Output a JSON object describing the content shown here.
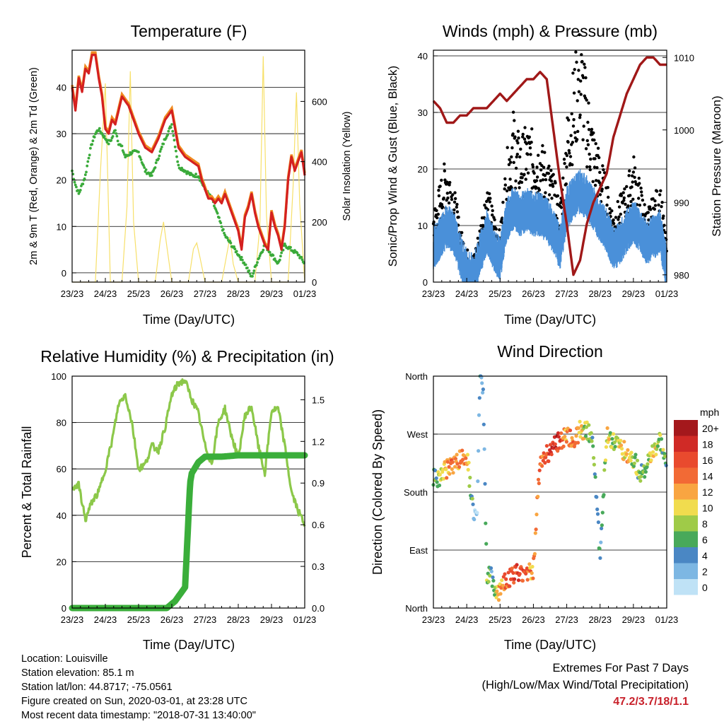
{
  "colors": {
    "temperature": "#d42020",
    "temperature_9m": "#f08a20",
    "dewpoint": "#3aaa3a",
    "solar": "#f7e06a",
    "gust": "#000000",
    "wind": "#4a90d9",
    "pressure": "#a01818",
    "humidity": "#8cc84a",
    "rainfall": "#3aae3a",
    "extremes_text": "#c8202a"
  },
  "panels": {
    "temperature": {
      "title": "Temperature (F)",
      "xlabel": "Time (Day/UTC)",
      "ylabel_left": "2m & 9m T (Red, Orange) & 2m Td (Green)",
      "ylabel_right": "Solar Insolation (Yellow)",
      "x_ticks": [
        "23/23",
        "24/23",
        "25/23",
        "26/23",
        "27/23",
        "28/23",
        "29/23",
        "01/23"
      ],
      "y_ticks": [
        "0",
        "10",
        "20",
        "30",
        "40"
      ],
      "y2_ticks": [
        "0",
        "200",
        "400",
        "600"
      ]
    },
    "winds": {
      "title": "Winds (mph) & Pressure (mb)",
      "xlabel": "Time (Day/UTC)",
      "ylabel_left": "Sonic/Prop Wind & Gust (Blue, Black)",
      "ylabel_right": "Station Pressure (Maroon)",
      "x_ticks": [
        "23/23",
        "24/23",
        "25/23",
        "26/23",
        "27/23",
        "28/23",
        "29/23",
        "01/23"
      ],
      "y_ticks": [
        "0",
        "10",
        "20",
        "30",
        "40"
      ],
      "y2_ticks": [
        "980",
        "990",
        "1000",
        "1010"
      ]
    },
    "humidity": {
      "title": "Relative Humidity (%) & Precipitation (in)",
      "xlabel": "Time (Day/UTC)",
      "ylabel_left": "Percent & Total Rainfall",
      "x_ticks": [
        "23/23",
        "24/23",
        "25/23",
        "26/23",
        "27/23",
        "28/23",
        "29/23",
        "01/23"
      ],
      "y_ticks": [
        "0",
        "20",
        "40",
        "60",
        "80",
        "100"
      ],
      "y2_ticks": [
        "0.0",
        "0.3",
        "0.6",
        "0.9",
        "1.2",
        "1.5"
      ]
    },
    "direction": {
      "title": "Wind Direction",
      "xlabel": "Time (Day/UTC)",
      "ylabel_left": "Direction (Colored By Speed)",
      "x_ticks": [
        "23/23",
        "24/23",
        "25/23",
        "26/23",
        "27/23",
        "28/23",
        "29/23",
        "01/23"
      ],
      "y_ticks": [
        "North",
        "East",
        "South",
        "West",
        "North"
      ],
      "legend_unit": "mph",
      "legend_labels": [
        "20+",
        "18",
        "16",
        "14",
        "12",
        "10",
        "8",
        "6",
        "4",
        "2",
        "0"
      ],
      "legend_colors": [
        "#a4181c",
        "#d02a26",
        "#e94a2e",
        "#f26a35",
        "#f9a541",
        "#f1dc4e",
        "#9fcb48",
        "#48a95a",
        "#4a87c4",
        "#7db7e3",
        "#bfe2f6"
      ]
    }
  },
  "meta": {
    "location": "Location: Louisville",
    "elevation": "Station elevation: 85.1 m",
    "latlon": "Station lat/lon: 44.8717; -75.0561",
    "created": "Figure created on Sun, 2020-03-01, at 23:28 UTC",
    "recent": "Most recent data timestamp: \"2018-07-31 13:40:00\""
  },
  "extremes": {
    "title": "Extremes For Past 7 Days",
    "subtitle": "(High/Low/Max Wind/Total Precipitation)",
    "values": "47.2/3.7/18/1.1"
  },
  "chart_data": [
    {
      "type": "line",
      "panel": "temperature",
      "x_units": "day index from 23/23",
      "ylim": [
        -2,
        48
      ],
      "y2lim": [
        0,
        770
      ],
      "grid": true,
      "series": [
        {
          "name": "2m T",
          "axis": "left",
          "x": [
            0,
            0.1,
            0.2,
            0.3,
            0.4,
            0.5,
            0.6,
            0.7,
            0.8,
            0.9,
            1.0,
            1.1,
            1.2,
            1.3,
            1.4,
            1.5,
            1.6,
            1.7,
            1.8,
            2.0,
            2.2,
            2.4,
            2.6,
            2.8,
            3.0,
            3.2,
            3.4,
            3.6,
            3.8,
            3.9,
            4.0,
            4.1,
            4.2,
            4.3,
            4.4,
            4.5,
            4.6,
            4.7,
            4.8,
            4.9,
            5.0,
            5.1,
            5.2,
            5.3,
            5.4,
            5.5,
            5.6,
            5.7,
            5.8,
            5.9,
            6.0,
            6.1,
            6.2,
            6.3,
            6.4,
            6.5,
            6.6,
            6.7,
            6.8,
            6.9,
            7.0
          ],
          "y": [
            40,
            35,
            42,
            39,
            44,
            43,
            47,
            47,
            42,
            38,
            31,
            30,
            33,
            32,
            35,
            38,
            37,
            36,
            34,
            30,
            27,
            26,
            29,
            33,
            35,
            27,
            25,
            24,
            23,
            20,
            18,
            16,
            16,
            15,
            16,
            15,
            17,
            15,
            13,
            11,
            9,
            5,
            12,
            14,
            17,
            13,
            10,
            8,
            6,
            5,
            13,
            10,
            8,
            5,
            10,
            20,
            25,
            22,
            24,
            26,
            21
          ]
        },
        {
          "name": "2m Td",
          "axis": "left",
          "x": [
            0,
            0.1,
            0.2,
            0.3,
            0.4,
            0.5,
            0.6,
            0.7,
            0.8,
            0.9,
            1.0,
            1.1,
            1.2,
            1.3,
            1.4,
            1.5,
            1.6,
            1.8,
            2.0,
            2.2,
            2.4,
            2.6,
            2.8,
            3.0,
            3.2,
            3.4,
            3.6,
            3.8,
            4.0,
            4.2,
            4.4,
            4.6,
            4.8,
            5.0,
            5.2,
            5.4,
            5.6,
            5.8,
            6.0,
            6.2,
            6.4,
            6.6,
            6.8,
            7.0
          ],
          "y": [
            22,
            19,
            17,
            19,
            21,
            25,
            28,
            30,
            31,
            30,
            29,
            28,
            29,
            31,
            28,
            27,
            25,
            26,
            26,
            22,
            21,
            25,
            29,
            32,
            23,
            22,
            21,
            21,
            18,
            16,
            12,
            8,
            6,
            4,
            2,
            -1,
            3,
            6,
            4,
            2,
            6,
            5,
            4,
            2
          ]
        },
        {
          "name": "Solar",
          "axis": "right",
          "x": [
            0,
            0.7,
            0.85,
            1.0,
            1.15,
            1.5,
            1.65,
            1.75,
            1.85,
            2.0,
            2.5,
            2.65,
            2.75,
            2.85,
            3.0,
            3.5,
            3.65,
            3.75,
            3.85,
            4.0,
            4.5,
            4.65,
            4.75,
            4.85,
            5.0,
            5.5,
            5.65,
            5.75,
            5.85,
            6.0,
            6.5,
            6.65,
            6.75,
            6.85,
            7.0
          ],
          "y": [
            0,
            0,
            360,
            660,
            0,
            0,
            250,
            700,
            200,
            0,
            0,
            140,
            200,
            120,
            0,
            0,
            110,
            130,
            80,
            0,
            0,
            90,
            150,
            60,
            0,
            0,
            190,
            750,
            220,
            0,
            0,
            320,
            630,
            260,
            0
          ]
        }
      ]
    },
    {
      "type": "scatter",
      "panel": "winds",
      "x_units": "day index from 23/23",
      "ylim": [
        0,
        41
      ],
      "y2lim": [
        979,
        1011
      ],
      "grid": true,
      "series": [
        {
          "name": "Station Pressure",
          "type": "line",
          "axis": "right",
          "x": [
            0,
            0.2,
            0.4,
            0.6,
            0.8,
            1.0,
            1.2,
            1.4,
            1.6,
            1.8,
            2.0,
            2.2,
            2.4,
            2.6,
            2.8,
            3.0,
            3.2,
            3.4,
            3.6,
            3.8,
            4.0,
            4.2,
            4.4,
            4.6,
            4.8,
            5.0,
            5.2,
            5.4,
            5.6,
            5.8,
            6.0,
            6.2,
            6.4,
            6.6,
            6.8,
            7.0
          ],
          "y": [
            1004,
            1003,
            1001,
            1001,
            1002,
            1002,
            1003,
            1003,
            1003,
            1004,
            1005,
            1004,
            1005,
            1006,
            1007,
            1007,
            1008,
            1007,
            1000,
            993,
            987,
            980,
            982,
            987,
            990,
            992,
            994,
            999,
            1002,
            1005,
            1007,
            1009,
            1010,
            1010,
            1009,
            1009
          ]
        },
        {
          "name": "Gust",
          "type": "scatter",
          "axis": "left",
          "x": [
            0,
            0.2,
            0.4,
            0.6,
            0.8,
            1.0,
            1.2,
            1.4,
            1.6,
            1.8,
            2.0,
            2.2,
            2.4,
            2.6,
            2.8,
            3.0,
            3.2,
            3.4,
            3.6,
            3.8,
            4.0,
            4.2,
            4.4,
            4.6,
            4.8,
            5.0,
            5.2,
            5.4,
            5.6,
            5.8,
            6.0,
            6.2,
            6.4,
            6.6,
            6.8,
            7.0
          ],
          "y": [
            10,
            14,
            18,
            14,
            8,
            4,
            3,
            8,
            14,
            10,
            7,
            18,
            24,
            20,
            22,
            21,
            20,
            18,
            15,
            11,
            23,
            30,
            36,
            28,
            22,
            18,
            14,
            10,
            12,
            14,
            18,
            14,
            10,
            12,
            14,
            5
          ]
        },
        {
          "name": "Wind",
          "type": "scatter",
          "axis": "left",
          "x": [
            0,
            0.2,
            0.4,
            0.6,
            0.8,
            1.0,
            1.2,
            1.4,
            1.6,
            1.8,
            2.0,
            2.2,
            2.4,
            2.6,
            2.8,
            3.0,
            3.2,
            3.4,
            3.6,
            3.8,
            4.0,
            4.2,
            4.4,
            4.6,
            4.8,
            5.0,
            5.2,
            5.4,
            5.6,
            5.8,
            6.0,
            6.2,
            6.4,
            6.6,
            6.8,
            7.0
          ],
          "y": [
            6,
            8,
            10,
            9,
            5,
            2,
            1,
            5,
            9,
            6,
            4,
            11,
            13,
            12,
            13,
            12,
            12,
            11,
            9,
            6,
            13,
            15,
            16,
            15,
            13,
            11,
            9,
            6,
            7,
            9,
            11,
            9,
            7,
            8,
            9,
            2
          ]
        }
      ]
    },
    {
      "type": "line",
      "panel": "humidity",
      "x_units": "day index from 23/23",
      "ylim": [
        0,
        100
      ],
      "y2lim": [
        0,
        1.67
      ],
      "grid": true,
      "series": [
        {
          "name": "Relative Humidity",
          "axis": "left",
          "x": [
            0,
            0.2,
            0.4,
            0.6,
            0.8,
            1.0,
            1.2,
            1.4,
            1.6,
            1.8,
            2.0,
            2.2,
            2.4,
            2.6,
            2.8,
            3.0,
            3.2,
            3.4,
            3.6,
            3.8,
            4.0,
            4.2,
            4.4,
            4.6,
            4.8,
            5.0,
            5.2,
            5.4,
            5.6,
            5.8,
            6.0,
            6.2,
            6.4,
            6.6,
            6.8,
            7.0
          ],
          "y": [
            52,
            53,
            38,
            46,
            50,
            60,
            72,
            88,
            92,
            80,
            60,
            62,
            70,
            68,
            78,
            92,
            97,
            98,
            90,
            84,
            70,
            62,
            80,
            86,
            74,
            65,
            83,
            87,
            70,
            58,
            85,
            86,
            70,
            50,
            42,
            36
          ]
        },
        {
          "name": "Total Rainfall",
          "axis": "right",
          "x": [
            0,
            1,
            2,
            2.85,
            3.1,
            3.4,
            3.45,
            3.55,
            3.6,
            3.8,
            4.0,
            4.5,
            5.0,
            6.0,
            7.0
          ],
          "y": [
            0,
            0,
            0,
            0,
            0.05,
            0.15,
            0.4,
            0.9,
            0.97,
            1.05,
            1.09,
            1.09,
            1.1,
            1.1,
            1.1
          ]
        }
      ]
    },
    {
      "type": "scatter",
      "panel": "direction",
      "x_units": "day index from 23/23",
      "y_units": "compass degrees with North=0 at the bottom and North=360 at the top",
      "ylim": [
        0,
        360
      ],
      "grid": true,
      "legend": "right",
      "series": [
        {
          "name": "Wind Direction",
          "x": [
            0.0,
            0.2,
            0.4,
            0.6,
            0.8,
            1.0,
            1.2,
            1.3,
            1.4,
            1.5,
            1.6,
            1.7,
            1.8,
            1.9,
            2.0,
            2.1,
            2.2,
            2.4,
            2.6,
            2.8,
            3.0,
            3.2,
            3.4,
            3.6,
            3.8,
            4.0,
            4.2,
            4.4,
            4.6,
            4.8,
            5.0,
            5.2,
            5.4,
            5.6,
            5.8,
            6.0,
            6.2,
            6.4,
            6.6,
            6.8,
            7.0
          ],
          "y": [
            200,
            205,
            215,
            225,
            230,
            240,
            150,
            130,
            360,
            330,
            40,
            60,
            30,
            20,
            30,
            40,
            45,
            50,
            55,
            55,
            60,
            230,
            240,
            250,
            260,
            265,
            260,
            275,
            280,
            250,
            80,
            270,
            260,
            250,
            240,
            230,
            210,
            220,
            240,
            260,
            210
          ],
          "speed": [
            6,
            8,
            12,
            14,
            12,
            14,
            4,
            2,
            4,
            4,
            8,
            6,
            4,
            10,
            12,
            14,
            14,
            16,
            16,
            14,
            12,
            14,
            16,
            18,
            16,
            12,
            14,
            12,
            8,
            6,
            4,
            10,
            8,
            10,
            12,
            8,
            6,
            8,
            10,
            8,
            6
          ]
        }
      ]
    }
  ]
}
